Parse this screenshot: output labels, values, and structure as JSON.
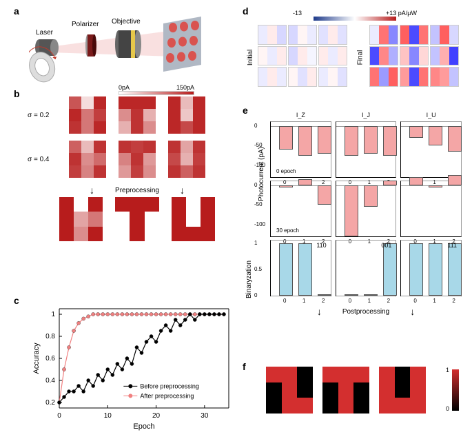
{
  "panel_labels": {
    "a": "a",
    "b": "b",
    "c": "c",
    "d": "d",
    "e": "e",
    "f": "f"
  },
  "panel_a": {
    "labels": {
      "laser": "Laser",
      "polarizer": "Polarizer",
      "objective": "Objective"
    },
    "colors": {
      "laser_body": "#555",
      "beam": "#f4c2c2",
      "polarizer": "#7a1a1a",
      "objective_body": "#444",
      "objective_ring": "#e6c84a",
      "sample": "#b0b8c4",
      "spot": "#d9534f"
    }
  },
  "panel_b": {
    "colorbar": {
      "min_label": "0pA",
      "max_label": "150pA",
      "min_color": "#ffffff",
      "max_color": "#b71c1c"
    },
    "sigma_labels": {
      "s1": "σ = 0.2",
      "s2": "σ = 0.4"
    },
    "preprocessing_label": "Preprocessing",
    "grids": {
      "s1": [
        [
          [
            0.75,
            0.15,
            0.95
          ],
          [
            0.95,
            0.6,
            0.85
          ],
          [
            0.9,
            0.6,
            0.95
          ]
        ],
        [
          [
            0.95,
            0.95,
            0.95
          ],
          [
            0.5,
            0.9,
            0.35
          ],
          [
            0.35,
            0.9,
            0.5
          ]
        ],
        [
          [
            0.95,
            0.3,
            0.95
          ],
          [
            0.95,
            0.25,
            0.95
          ],
          [
            0.95,
            0.8,
            0.95
          ]
        ]
      ],
      "s2": [
        [
          [
            0.7,
            0.3,
            0.9
          ],
          [
            0.9,
            0.5,
            0.65
          ],
          [
            0.85,
            0.55,
            0.9
          ]
        ],
        [
          [
            0.9,
            0.85,
            0.9
          ],
          [
            0.55,
            0.9,
            0.45
          ],
          [
            0.45,
            0.85,
            0.5
          ]
        ],
        [
          [
            0.9,
            0.4,
            0.9
          ],
          [
            0.8,
            0.35,
            0.85
          ],
          [
            0.9,
            0.7,
            0.9
          ]
        ]
      ],
      "pre": [
        [
          [
            1,
            0,
            1
          ],
          [
            1,
            0.4,
            0.6
          ],
          [
            1,
            0.5,
            1
          ]
        ],
        [
          [
            1,
            1,
            1
          ],
          [
            0,
            1,
            0
          ],
          [
            0,
            1,
            0
          ]
        ],
        [
          [
            1,
            0,
            1
          ],
          [
            1,
            0,
            1
          ],
          [
            1,
            1,
            1
          ]
        ]
      ]
    }
  },
  "panel_c": {
    "xlabel": "Epoch",
    "ylabel": "Accuracy",
    "legend": {
      "before": "Before preprocessing",
      "after": "After preprocessing"
    },
    "colors": {
      "before": "#000000",
      "after": "#f08080"
    },
    "xlim": [
      0,
      35
    ],
    "ylim": [
      0.15,
      1.05
    ],
    "xticks": [
      0,
      10,
      20,
      30
    ],
    "yticks": [
      0.2,
      0.4,
      0.6,
      0.8,
      1.0
    ],
    "before": [
      0.2,
      0.25,
      0.3,
      0.3,
      0.35,
      0.3,
      0.4,
      0.35,
      0.45,
      0.4,
      0.5,
      0.45,
      0.55,
      0.5,
      0.6,
      0.55,
      0.7,
      0.65,
      0.75,
      0.8,
      0.75,
      0.85,
      0.9,
      0.85,
      0.95,
      0.9,
      0.95,
      1.0,
      0.95,
      1.0,
      1.0,
      1.0,
      1.0,
      1.0,
      1.0
    ],
    "after": [
      0.2,
      0.5,
      0.7,
      0.85,
      0.92,
      0.96,
      0.98,
      1.0,
      1.0,
      1.0,
      1.0,
      1.0,
      1.0,
      1.0,
      1.0,
      1.0,
      1.0,
      1.0,
      1.0,
      1.0,
      1.0,
      1.0,
      1.0,
      1.0,
      1.0,
      1.0,
      1.0,
      1.0,
      1.0,
      1.0,
      1.0,
      1.0,
      1.0,
      1.0,
      1.0
    ]
  },
  "panel_d": {
    "colorbar": {
      "min_label": "-13",
      "max_label": "+13 pA/μW",
      "min_color": "#1e3a8a",
      "mid_color": "#ffffff",
      "max_color": "#b71c1c"
    },
    "side_labels": {
      "initial": "Initial",
      "final": "Final"
    },
    "initial": [
      [
        [
          -0.1,
          0.1,
          -0.2
        ],
        [
          -0.2,
          0.05,
          -0.1
        ],
        [
          -0.15,
          0.1,
          -0.15
        ]
      ],
      [
        [
          0.05,
          -0.1,
          0.1
        ],
        [
          -0.2,
          0.1,
          -0.05
        ],
        [
          0.1,
          -0.1,
          0.1
        ]
      ],
      [
        [
          -0.1,
          0.1,
          -0.1
        ],
        [
          0.05,
          -0.15,
          0.1
        ],
        [
          -0.1,
          0.05,
          -0.15
        ]
      ]
    ],
    "final": [
      [
        [
          -0.1,
          0.7,
          -0.6
        ],
        [
          0.8,
          -0.9,
          0.7
        ],
        [
          -0.3,
          0.8,
          -0.2
        ]
      ],
      [
        [
          -0.9,
          0.6,
          -0.4
        ],
        [
          0.3,
          -0.6,
          0.2
        ],
        [
          -0.3,
          0.4,
          -0.95
        ]
      ],
      [
        [
          0.7,
          -0.5,
          0.8
        ],
        [
          0.5,
          -0.9,
          0.7
        ],
        [
          0.6,
          0.5,
          -0.3
        ]
      ]
    ]
  },
  "panel_e": {
    "ylabel_top": "Photocurrent (pA)",
    "ylabel_bot": "Binaryzation",
    "titles": {
      "z": "I_Z",
      "j": "I_J",
      "u": "I_U"
    },
    "epoch_labels": {
      "e0": "0 epoch",
      "e30": "30 epoch"
    },
    "bin_labels": {
      "z": "110",
      "j": "001",
      "u": "111"
    },
    "postprocessing_label": "Postprocessing",
    "colors": {
      "bar": "#f4a6a6",
      "bin_bar": "#a8d8e8",
      "border": "#444"
    },
    "ylim_top": [
      -130,
      10
    ],
    "yticks_top": [
      0,
      -50,
      -100
    ],
    "data_e0": {
      "z": [
        -60,
        -75,
        -70
      ],
      "j": [
        -75,
        -70,
        -75
      ],
      "u": [
        -30,
        -50,
        -65
      ]
    },
    "data_e30": {
      "z": [
        -5,
        15,
        -50
      ],
      "j": [
        -130,
        -55,
        12
      ],
      "u": [
        20,
        -5,
        25
      ]
    },
    "ylim_bin": [
      0,
      1.05
    ],
    "yticks_bin": [
      0,
      0.5,
      1.0
    ],
    "data_bin": {
      "z": [
        1,
        1,
        0
      ],
      "j": [
        0,
        0,
        1
      ],
      "u": [
        1,
        1,
        1
      ]
    },
    "xticks": [
      0,
      1,
      2
    ]
  },
  "panel_f": {
    "colorbar": {
      "top_label": "1",
      "bot_label": "0",
      "top_color": "#d32f2f",
      "bot_color": "#000000"
    },
    "grids": [
      [
        [
          1,
          1,
          0
        ],
        [
          0,
          1,
          0
        ],
        [
          0,
          1,
          1
        ]
      ],
      [
        [
          1,
          1,
          1
        ],
        [
          0,
          1,
          0
        ],
        [
          0,
          1,
          0
        ]
      ],
      [
        [
          1,
          0,
          1
        ],
        [
          1,
          0,
          1
        ],
        [
          1,
          1,
          1
        ]
      ]
    ]
  }
}
